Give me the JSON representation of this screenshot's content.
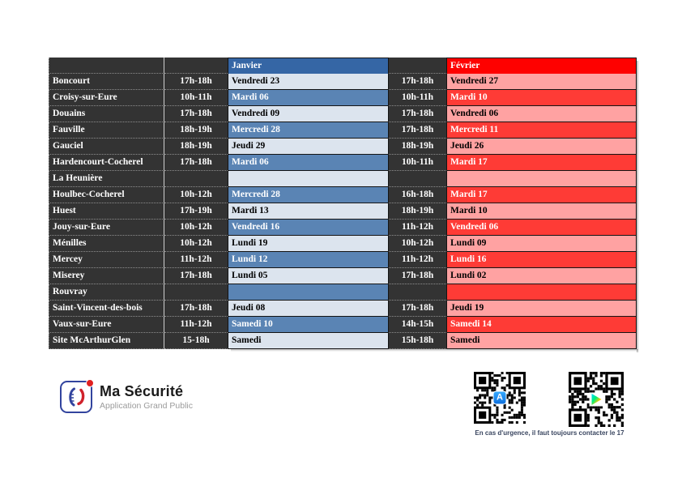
{
  "table": {
    "month_headers": {
      "janvier": "Janvier",
      "fevrier": "Février"
    },
    "rows": [
      {
        "town": "Boncourt",
        "jan_time": "17h-18h",
        "jan_date": "Vendredi 23",
        "fev_time": "17h-18h",
        "fev_date": "Vendredi 27"
      },
      {
        "town": "Croisy-sur-Eure",
        "jan_time": "10h-11h",
        "jan_date": "Mardi 06",
        "fev_time": "10h-11h",
        "fev_date": "Mardi 10"
      },
      {
        "town": "Douains",
        "jan_time": "17h-18h",
        "jan_date": "Vendredi 09",
        "fev_time": "17h-18h",
        "fev_date": "Vendredi 06"
      },
      {
        "town": "Fauville",
        "jan_time": "18h-19h",
        "jan_date": "Mercredi 28",
        "fev_time": "17h-18h",
        "fev_date": "Mercredi 11"
      },
      {
        "town": "Gauciel",
        "jan_time": "18h-19h",
        "jan_date": "Jeudi 29",
        "fev_time": "18h-19h",
        "fev_date": "Jeudi 26"
      },
      {
        "town": "Hardencourt-Cocherel",
        "jan_time": "17h-18h",
        "jan_date": "Mardi 06",
        "fev_time": "10h-11h",
        "fev_date": "Mardi 17"
      },
      {
        "town": "La Heunière",
        "jan_time": "",
        "jan_date": "",
        "fev_time": "",
        "fev_date": ""
      },
      {
        "town": "Houlbec-Cocherel",
        "jan_time": "10h-12h",
        "jan_date": "Mercredi 28",
        "fev_time": "16h-18h",
        "fev_date": "Mardi 17"
      },
      {
        "town": "Huest",
        "jan_time": "17h-19h",
        "jan_date": "Mardi 13",
        "fev_time": "18h-19h",
        "fev_date": "Mardi 10"
      },
      {
        "town": "Jouy-sur-Eure",
        "jan_time": "10h-12h",
        "jan_date": "Vendredi 16",
        "fev_time": "11h-12h",
        "fev_date": "Vendredi 06"
      },
      {
        "town": "Ménilles",
        "jan_time": "10h-12h",
        "jan_date": "Lundi 19",
        "fev_time": "10h-12h",
        "fev_date": "Lundi 09"
      },
      {
        "town": "Mercey",
        "jan_time": "11h-12h",
        "jan_date": "Lundi 12",
        "fev_time": "11h-12h",
        "fev_date": "Lundi 16"
      },
      {
        "town": "Miserey",
        "jan_time": "17h-18h",
        "jan_date": "Lundi 05",
        "fev_time": "17h-18h",
        "fev_date": "Lundi 02"
      },
      {
        "town": "Rouvray",
        "jan_time": "",
        "jan_date": "",
        "fev_time": "",
        "fev_date": ""
      },
      {
        "town": "Saint-Vincent-des-bois",
        "jan_time": "17h-18h",
        "jan_date": "Jeudi 08",
        "fev_time": "17h-18h",
        "fev_date": "Jeudi 19"
      },
      {
        "town": "Vaux-sur-Eure",
        "jan_time": "11h-12h",
        "jan_date": "Samedi 10",
        "fev_time": "14h-15h",
        "fev_date": "Samedi 14"
      },
      {
        "town": "Site McArthurGlen",
        "jan_time": "15-18h",
        "jan_date": "Samedi",
        "fev_time": "15h-18h",
        "fev_date": "Samedi"
      }
    ]
  },
  "footer": {
    "app_title": "Ma Sécurité",
    "app_subtitle": "Application Grand Public",
    "appstore_glyph": "A",
    "emergency_note": "En cas d'urgence, il faut toujours contacter le 17"
  },
  "colors": {
    "dark": "#333333",
    "janvier-header": "#3566a5",
    "janvier-light": "#dce4ee",
    "janvier-medium": "#5a84b4",
    "fevrier-header": "#fe0100",
    "fevrier-light": "#ffa2a2",
    "fevrier-medium": "#fe3b36"
  }
}
